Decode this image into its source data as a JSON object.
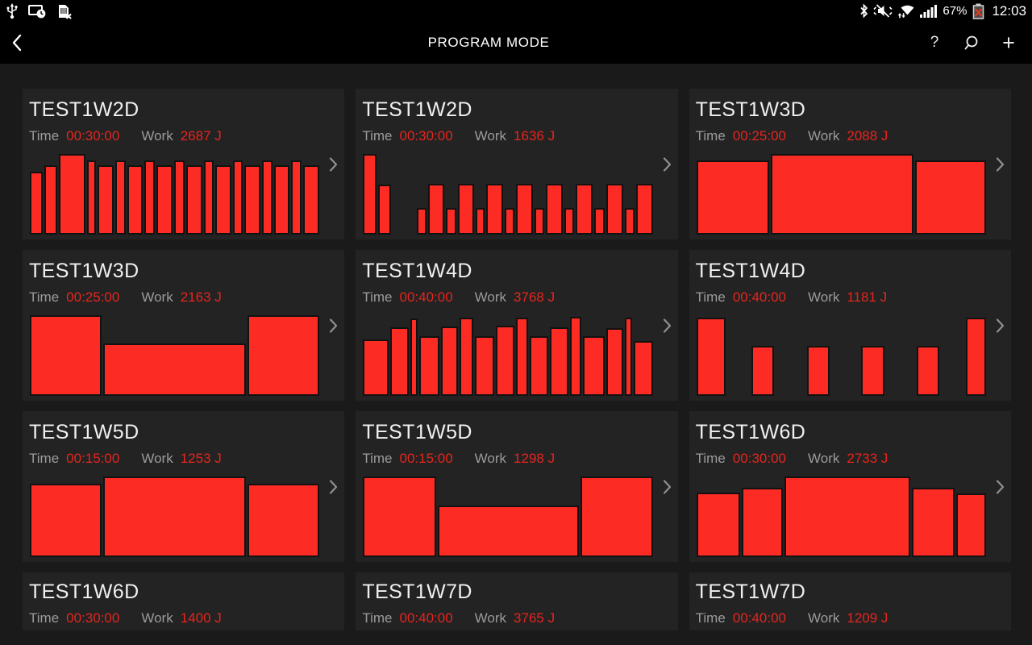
{
  "status_bar": {
    "time": "12:03",
    "battery_percent": "67%",
    "left_icons": [
      "usb-icon",
      "screen-timeout-icon",
      "no-sim-icon"
    ],
    "right_icons": [
      "bluetooth-icon",
      "sound-mute-icon",
      "wifi-icon",
      "signal-strength-icon",
      "battery-alert-icon"
    ]
  },
  "action_bar": {
    "title": "PROGRAM MODE",
    "help_glyph": "?",
    "plus_glyph": "+"
  },
  "labels": {
    "time": "Time",
    "work": "Work"
  },
  "colors": {
    "bar_red": "#fc2b24",
    "value_red": "#e6251e",
    "card_bg": "#232323",
    "page_bg": "#1a1a1a",
    "bar_border": "#121212"
  },
  "cards": [
    {
      "title": "TEST1W2D",
      "time": "00:30:00",
      "work": "2687 J",
      "compact": false,
      "bars": [
        [
          16,
          0.78
        ],
        [
          15,
          0.86
        ],
        [
          37,
          1.0
        ],
        [
          10,
          0.92
        ],
        [
          20,
          0.86
        ],
        [
          12,
          0.92
        ],
        [
          19,
          0.86
        ],
        [
          11,
          0.92
        ],
        [
          21,
          0.86
        ],
        [
          12,
          0.92
        ],
        [
          21,
          0.86
        ],
        [
          10,
          0.92
        ],
        [
          20,
          0.86
        ],
        [
          11,
          0.92
        ],
        [
          21,
          0.86
        ],
        [
          11,
          0.92
        ],
        [
          20,
          0.86
        ],
        [
          11,
          0.92
        ],
        [
          21,
          0.86
        ]
      ]
    },
    {
      "title": "TEST1W2D",
      "time": "00:30:00",
      "work": "1636 J",
      "compact": false,
      "bars": [
        [
          18,
          1.0
        ],
        [
          17,
          0.62
        ],
        [
          40,
          0
        ],
        [
          12,
          0.33
        ],
        [
          23,
          0.63
        ],
        [
          12,
          0.33
        ],
        [
          23,
          0.63
        ],
        [
          11,
          0.33
        ],
        [
          24,
          0.63
        ],
        [
          11,
          0.33
        ],
        [
          25,
          0.63
        ],
        [
          11,
          0.33
        ],
        [
          25,
          0.63
        ],
        [
          11,
          0.33
        ],
        [
          25,
          0.63
        ],
        [
          13,
          0.33
        ],
        [
          24,
          0.63
        ],
        [
          11,
          0.33
        ],
        [
          24,
          0.63
        ]
      ]
    },
    {
      "title": "TEST1W3D",
      "time": "00:25:00",
      "work": "2088 J",
      "compact": false,
      "bars": [
        [
          91,
          0.92
        ],
        [
          182,
          1.0
        ],
        [
          88,
          0.92
        ]
      ]
    },
    {
      "title": "TEST1W3D",
      "time": "00:25:00",
      "work": "2163 J",
      "compact": false,
      "bars": [
        [
          90,
          1.0
        ],
        [
          182,
          0.65
        ],
        [
          90,
          1.0
        ]
      ]
    },
    {
      "title": "TEST1W4D",
      "time": "00:40:00",
      "work": "3768 J",
      "compact": false,
      "bars": [
        [
          36,
          0.7
        ],
        [
          25,
          0.85
        ],
        [
          7,
          0.96
        ],
        [
          28,
          0.74
        ],
        [
          22,
          0.86
        ],
        [
          17,
          0.97
        ],
        [
          27,
          0.74
        ],
        [
          25,
          0.87
        ],
        [
          14,
          0.97
        ],
        [
          26,
          0.74
        ],
        [
          25,
          0.85
        ],
        [
          13,
          0.98
        ],
        [
          30,
          0.74
        ],
        [
          23,
          0.84
        ],
        [
          6,
          0.97
        ],
        [
          26,
          0.68
        ]
      ]
    },
    {
      "title": "TEST1W4D",
      "time": "00:40:00",
      "work": "1181 J",
      "compact": false,
      "bars": [
        [
          37,
          0.97
        ],
        [
          33,
          0
        ],
        [
          27,
          0.62
        ],
        [
          43,
          0
        ],
        [
          27,
          0.62
        ],
        [
          41,
          0
        ],
        [
          28,
          0.62
        ],
        [
          42,
          0
        ],
        [
          27,
          0.62
        ],
        [
          34,
          0
        ],
        [
          24,
          0.97
        ]
      ]
    },
    {
      "title": "TEST1W5D",
      "time": "00:15:00",
      "work": "1253 J",
      "compact": false,
      "bars": [
        [
          89,
          0.91
        ],
        [
          181,
          1.0
        ],
        [
          90,
          0.91
        ]
      ]
    },
    {
      "title": "TEST1W5D",
      "time": "00:15:00",
      "work": "1298 J",
      "compact": false,
      "bars": [
        [
          97,
          1.0
        ],
        [
          193,
          0.64
        ],
        [
          96,
          1.0
        ]
      ]
    },
    {
      "title": "TEST1W6D",
      "time": "00:30:00",
      "work": "2733 J",
      "compact": false,
      "bars": [
        [
          54,
          0.8
        ],
        [
          51,
          0.86
        ],
        [
          163,
          1.0
        ],
        [
          52,
          0.86
        ],
        [
          36,
          0.79
        ]
      ]
    },
    {
      "title": "TEST1W6D",
      "time": "00:30:00",
      "work": "1400 J",
      "compact": true,
      "bars": []
    },
    {
      "title": "TEST1W7D",
      "time": "00:40:00",
      "work": "3765 J",
      "compact": true,
      "bars": []
    },
    {
      "title": "TEST1W7D",
      "time": "00:40:00",
      "work": "1209 J",
      "compact": true,
      "bars": []
    }
  ]
}
